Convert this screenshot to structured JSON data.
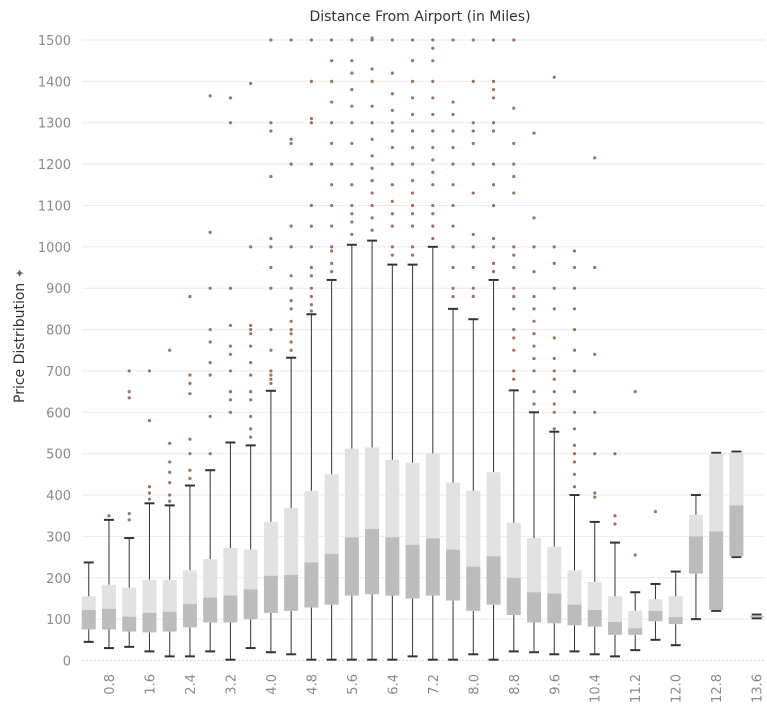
{
  "chart_data": {
    "type": "box",
    "title": "Distance From Airport (in Miles)",
    "ylabel": "Price Distribution",
    "ylim": [
      0,
      1510
    ],
    "yticks": [
      0,
      100,
      200,
      300,
      400,
      500,
      600,
      700,
      800,
      900,
      1000,
      1100,
      1200,
      1300,
      1400,
      1500
    ],
    "xticks": [
      "0.8",
      "1.6",
      "2.4",
      "3.2",
      "4.0",
      "4.8",
      "5.6",
      "6.4",
      "7.2",
      "8.0",
      "8.8",
      "9.6",
      "10.4",
      "11.2",
      "12.0",
      "12.8",
      "13.6"
    ],
    "grid": true,
    "colors": {
      "upper_box": "#e2e2e2",
      "lower_box": "#bcbcbc",
      "whisker": "#333333",
      "outlier": "#9c7461",
      "grid": "#ebebeb",
      "tick_label": "#8a8a8a"
    },
    "boxes": [
      {
        "x": 0.4,
        "min": 45,
        "q1": 75,
        "median": 122,
        "q3": 155,
        "max": 237,
        "outliers": []
      },
      {
        "x": 0.8,
        "min": 30,
        "q1": 75,
        "median": 125,
        "q3": 183,
        "max": 340,
        "outliers": [
          350
        ]
      },
      {
        "x": 1.2,
        "min": 33,
        "q1": 70,
        "median": 106,
        "q3": 176,
        "max": 296,
        "outliers": [
          340,
          355,
          635,
          650,
          700
        ]
      },
      {
        "x": 1.6,
        "min": 22,
        "q1": 68,
        "median": 115,
        "q3": 195,
        "max": 380,
        "outliers": [
          390,
          405,
          420,
          580,
          700
        ]
      },
      {
        "x": 2.0,
        "min": 10,
        "q1": 70,
        "median": 118,
        "q3": 195,
        "max": 375,
        "outliers": [
          385,
          400,
          430,
          455,
          480,
          525,
          750
        ]
      },
      {
        "x": 2.4,
        "min": 10,
        "q1": 80,
        "median": 137,
        "q3": 218,
        "max": 423,
        "outliers": [
          440,
          460,
          500,
          535,
          645,
          670,
          690,
          880
        ]
      },
      {
        "x": 2.8,
        "min": 22,
        "q1": 92,
        "median": 152,
        "q3": 245,
        "max": 460,
        "outliers": [
          500,
          590,
          690,
          720,
          770,
          800,
          900,
          1035,
          1365
        ]
      },
      {
        "x": 3.2,
        "min": 2,
        "q1": 92,
        "median": 157,
        "q3": 272,
        "max": 527,
        "outliers": [
          600,
          630,
          650,
          700,
          740,
          760,
          810,
          900,
          1300,
          1360
        ]
      },
      {
        "x": 3.6,
        "min": 30,
        "q1": 100,
        "median": 172,
        "q3": 268,
        "max": 520,
        "outliers": [
          540,
          560,
          590,
          630,
          650,
          690,
          720,
          760,
          790,
          800,
          810,
          1000,
          1395
        ]
      },
      {
        "x": 4.0,
        "min": 20,
        "q1": 115,
        "median": 205,
        "q3": 335,
        "max": 652,
        "outliers": [
          670,
          680,
          690,
          700,
          750,
          800,
          900,
          950,
          1000,
          1020,
          1170,
          1280,
          1300,
          1500
        ]
      },
      {
        "x": 4.4,
        "min": 15,
        "q1": 120,
        "median": 207,
        "q3": 368,
        "max": 732,
        "outliers": [
          750,
          770,
          790,
          800,
          820,
          850,
          870,
          900,
          930,
          1000,
          1050,
          1200,
          1250,
          1260,
          1500
        ]
      },
      {
        "x": 4.8,
        "min": 2,
        "q1": 128,
        "median": 237,
        "q3": 410,
        "max": 837,
        "outliers": [
          845,
          860,
          880,
          900,
          930,
          950,
          1000,
          1050,
          1100,
          1200,
          1300,
          1310,
          1400,
          1500
        ]
      },
      {
        "x": 5.2,
        "min": 2,
        "q1": 135,
        "median": 258,
        "q3": 450,
        "max": 920,
        "outliers": [
          940,
          960,
          990,
          1000,
          1050,
          1100,
          1150,
          1200,
          1250,
          1300,
          1350,
          1400,
          1450,
          1500
        ]
      },
      {
        "x": 5.6,
        "min": 2,
        "q1": 157,
        "median": 298,
        "q3": 512,
        "max": 1005,
        "outliers": [
          1030,
          1060,
          1080,
          1100,
          1150,
          1200,
          1250,
          1300,
          1340,
          1380,
          1420,
          1450,
          1500
        ]
      },
      {
        "x": 6.0,
        "min": 2,
        "q1": 160,
        "median": 318,
        "q3": 515,
        "max": 1015,
        "outliers": [
          1040,
          1070,
          1100,
          1130,
          1160,
          1190,
          1220,
          1260,
          1300,
          1340,
          1400,
          1430,
          1500,
          1505
        ]
      },
      {
        "x": 6.4,
        "min": 2,
        "q1": 157,
        "median": 298,
        "q3": 485,
        "max": 957,
        "outliers": [
          980,
          1000,
          1050,
          1080,
          1110,
          1150,
          1200,
          1240,
          1280,
          1300,
          1330,
          1370,
          1420,
          1500
        ]
      },
      {
        "x": 6.8,
        "min": 10,
        "q1": 150,
        "median": 280,
        "q3": 478,
        "max": 957,
        "outliers": [
          980,
          1000,
          1050,
          1080,
          1100,
          1130,
          1160,
          1200,
          1240,
          1280,
          1320,
          1360,
          1400,
          1450,
          1500
        ]
      },
      {
        "x": 7.2,
        "min": 2,
        "q1": 157,
        "median": 295,
        "q3": 500,
        "max": 1000,
        "outliers": [
          1020,
          1050,
          1080,
          1100,
          1150,
          1180,
          1210,
          1240,
          1280,
          1320,
          1360,
          1400,
          1450,
          1480,
          1500
        ]
      },
      {
        "x": 7.6,
        "min": 2,
        "q1": 145,
        "median": 268,
        "q3": 430,
        "max": 850,
        "outliers": [
          880,
          900,
          950,
          1000,
          1050,
          1100,
          1150,
          1200,
          1240,
          1280,
          1320,
          1350,
          1500
        ]
      },
      {
        "x": 8.0,
        "min": 15,
        "q1": 120,
        "median": 227,
        "q3": 410,
        "max": 825,
        "outliers": [
          880,
          900,
          950,
          1000,
          1030,
          1130,
          1200,
          1250,
          1280,
          1300,
          1400,
          1500
        ]
      },
      {
        "x": 8.4,
        "min": 2,
        "q1": 135,
        "median": 252,
        "q3": 455,
        "max": 920,
        "outliers": [
          940,
          960,
          1000,
          1020,
          1100,
          1150,
          1200,
          1280,
          1300,
          1360,
          1380,
          1400,
          1500
        ]
      },
      {
        "x": 8.8,
        "min": 22,
        "q1": 110,
        "median": 200,
        "q3": 333,
        "max": 653,
        "outliers": [
          680,
          700,
          750,
          780,
          800,
          850,
          880,
          900,
          950,
          980,
          1000,
          1130,
          1170,
          1200,
          1250,
          1335,
          1500
        ]
      },
      {
        "x": 9.2,
        "min": 20,
        "q1": 92,
        "median": 165,
        "q3": 296,
        "max": 600,
        "outliers": [
          620,
          650,
          700,
          730,
          760,
          790,
          820,
          850,
          880,
          940,
          1000,
          1070,
          1275
        ]
      },
      {
        "x": 9.6,
        "min": 15,
        "q1": 90,
        "median": 162,
        "q3": 275,
        "max": 553,
        "outliers": [
          560,
          600,
          620,
          650,
          680,
          700,
          730,
          780,
          850,
          900,
          960,
          1000,
          1410
        ]
      },
      {
        "x": 10.0,
        "min": 22,
        "q1": 85,
        "median": 135,
        "q3": 218,
        "max": 400,
        "outliers": [
          420,
          450,
          480,
          500,
          520,
          560,
          600,
          650,
          700,
          750,
          800,
          850,
          900,
          950,
          990
        ]
      },
      {
        "x": 10.4,
        "min": 15,
        "q1": 82,
        "median": 122,
        "q3": 190,
        "max": 335,
        "outliers": [
          395,
          405,
          500,
          600,
          740,
          950,
          1215
        ]
      },
      {
        "x": 10.8,
        "min": 10,
        "q1": 62,
        "median": 93,
        "q3": 155,
        "max": 285,
        "outliers": [
          330,
          350,
          500
        ]
      },
      {
        "x": 11.2,
        "min": 25,
        "q1": 62,
        "median": 78,
        "q3": 120,
        "max": 165,
        "outliers": [
          255,
          650
        ]
      },
      {
        "x": 11.6,
        "min": 50,
        "q1": 95,
        "median": 120,
        "q3": 148,
        "max": 185,
        "outliers": [
          360
        ]
      },
      {
        "x": 12.0,
        "min": 37,
        "q1": 88,
        "median": 105,
        "q3": 155,
        "max": 215,
        "outliers": []
      },
      {
        "x": 12.4,
        "min": 100,
        "q1": 210,
        "median": 300,
        "q3": 352,
        "max": 400,
        "outliers": []
      },
      {
        "x": 12.8,
        "min": 120,
        "q1": 122,
        "median": 312,
        "q3": 500,
        "max": 502,
        "outliers": []
      },
      {
        "x": 13.2,
        "min": 250,
        "q1": 252,
        "median": 375,
        "q3": 503,
        "max": 505,
        "outliers": []
      },
      {
        "x": 13.6,
        "min": 102,
        "q1": 104,
        "median": 107,
        "q3": 109,
        "max": 111,
        "outliers": []
      }
    ]
  }
}
